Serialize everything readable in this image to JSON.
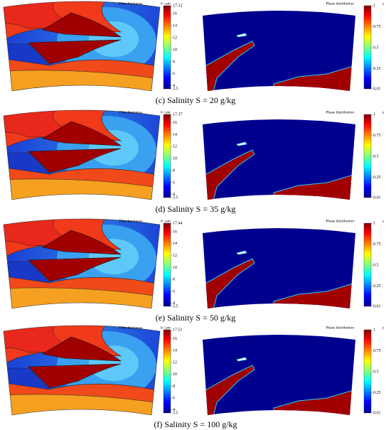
{
  "panels": [
    {
      "caption": "(c) Salinity S = 20 g/kg",
      "thickness": {
        "title": "Film thickness",
        "symbol": "h / μm",
        "ticks": [
          17.32,
          16,
          14,
          12,
          10,
          8,
          6,
          4,
          3.5
        ]
      },
      "phase": {
        "title": "Phase distribution",
        "symbol": "γ",
        "ticks": [
          1,
          0.75,
          0.5,
          0.25,
          0.01
        ]
      }
    },
    {
      "caption": "(d) Salinity S = 35 g/kg",
      "thickness": {
        "title": "Film thickness",
        "symbol": "h / μm",
        "ticks": [
          17.37,
          16,
          14,
          12,
          10,
          8,
          6,
          4,
          3.5
        ]
      },
      "phase": {
        "title": "Phase distribution",
        "symbol": "γ",
        "ticks": [
          1,
          0.75,
          0.5,
          0.25,
          0.01
        ]
      }
    },
    {
      "caption": "(e) Salinity S = 50 g/kg",
      "thickness": {
        "title": "Film thickness",
        "symbol": "h / μm",
        "ticks": [
          17.44,
          16,
          14,
          12,
          10,
          8,
          6,
          4,
          3.5
        ]
      },
      "phase": {
        "title": "Phase distribution",
        "symbol": "γ",
        "ticks": [
          1,
          0.75,
          0.5,
          0.25,
          0.01
        ]
      }
    },
    {
      "caption": "(f) Salinity S = 100 g/kg",
      "thickness": {
        "title": "Film thickness",
        "symbol": "h / μm",
        "ticks": [
          17.51,
          16,
          14,
          12,
          10,
          8,
          6,
          4,
          3.5
        ]
      },
      "phase": {
        "title": "Phase distribution",
        "symbol": "γ",
        "ticks": [
          1,
          0.75,
          0.5,
          0.25,
          0.01
        ]
      }
    }
  ]
}
